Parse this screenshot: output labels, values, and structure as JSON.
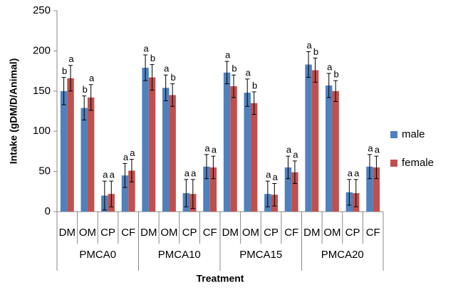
{
  "chart_data": {
    "type": "bar",
    "ylabel": "Intake (gDM/D/Animal)",
    "xlabel": "Treatment",
    "categories": [
      "DM",
      "OM",
      "CP",
      "CF",
      "DM",
      "OM",
      "CP",
      "CF",
      "DM",
      "OM",
      "CP",
      "CF",
      "DM",
      "OM",
      "CP",
      "CF"
    ],
    "groups": [
      "PMCA0",
      "PMCA10",
      "PMCA15",
      "PMCA20"
    ],
    "series": [
      {
        "name": "male",
        "color": "#4f81bd",
        "values": [
          150,
          129,
          20,
          45,
          179,
          154,
          23,
          56,
          173,
          148,
          22,
          55,
          183,
          157,
          24,
          56
        ],
        "errors": [
          17,
          15,
          18,
          15,
          16,
          16,
          17,
          15,
          14,
          17,
          16,
          14,
          16,
          15,
          16,
          15
        ],
        "annotations": [
          "b",
          "b",
          "a",
          "a",
          "a",
          "a",
          "a",
          "a",
          "a",
          "a",
          "a",
          "a",
          "a",
          "a",
          "a",
          "a"
        ]
      },
      {
        "name": "female",
        "color": "#c0504d",
        "values": [
          166,
          142,
          22,
          51,
          167,
          145,
          22,
          55,
          156,
          135,
          21,
          49,
          176,
          150,
          23,
          55
        ],
        "errors": [
          16,
          16,
          16,
          14,
          16,
          14,
          18,
          14,
          14,
          14,
          14,
          14,
          15,
          13,
          17,
          14
        ],
        "annotations": [
          "a",
          "a",
          "a",
          "a",
          "b",
          "b",
          "a",
          "a",
          "b",
          "b",
          "a",
          "a",
          "b",
          "b",
          "a",
          "a"
        ]
      }
    ],
    "ylim": [
      0,
      250
    ],
    "yticks": [
      0,
      50,
      100,
      150,
      200,
      250
    ],
    "grid": false,
    "legend": "right"
  }
}
